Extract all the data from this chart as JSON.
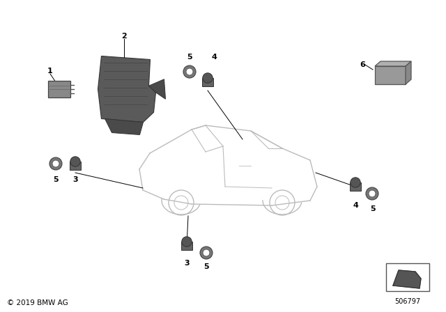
{
  "background_color": "#ffffff",
  "copyright_text": "© 2019 BMW AG",
  "part_number": "506797",
  "fig_width": 6.4,
  "fig_height": 4.48,
  "dpi": 100,
  "car_color": "#bbbbbb",
  "part_color": "#7a7a7a",
  "dark_part_color": "#555555",
  "line_color": "#000000",
  "label_fontsize": 8,
  "small_fontsize": 7
}
